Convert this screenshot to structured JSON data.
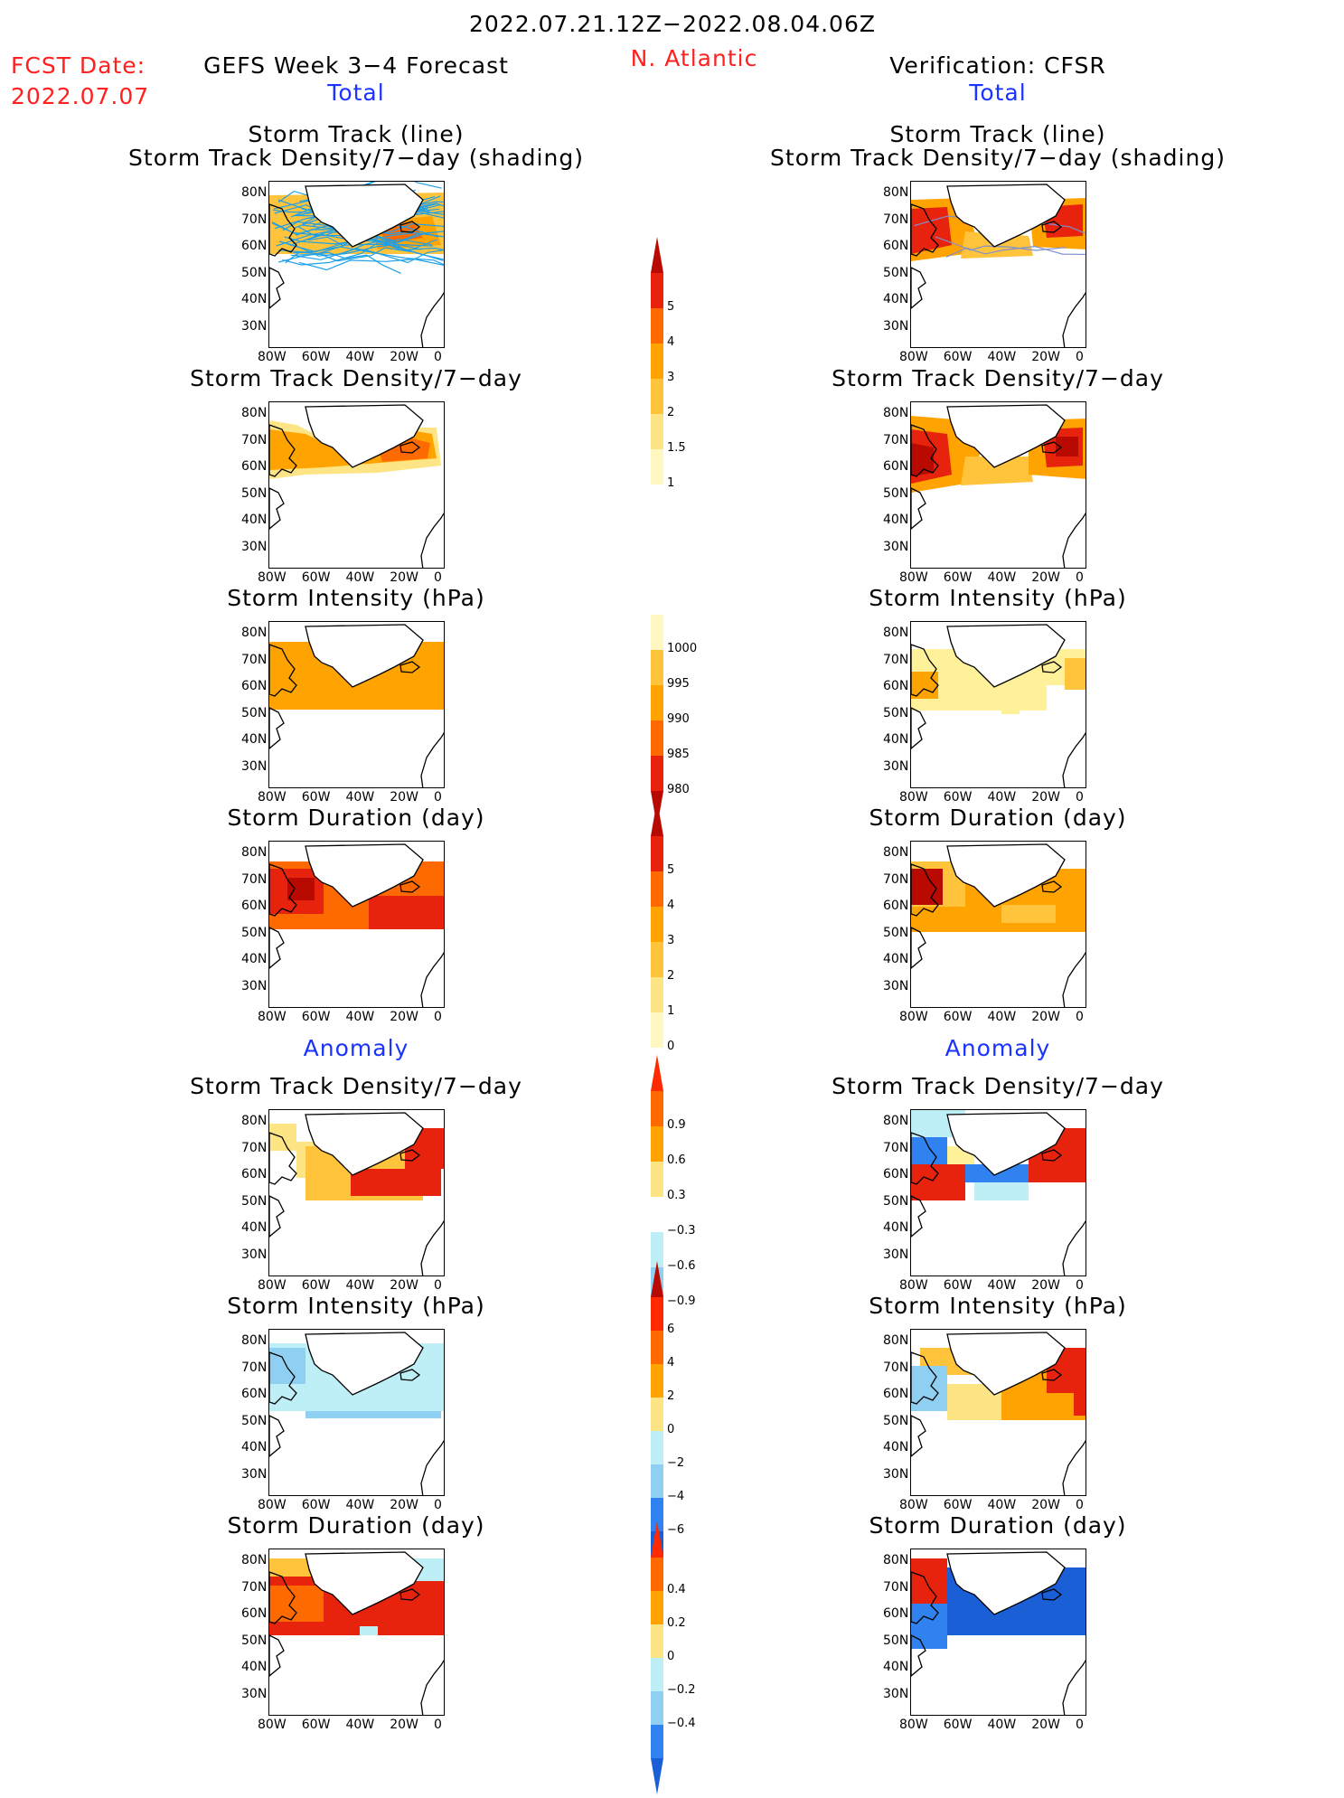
{
  "header": {
    "date_range": "2022.07.21.12Z−2022.08.04.06Z",
    "fcst_label": "FCST Date:",
    "fcst_date": "2022.07.07",
    "model_title": "GEFS Week 3−4 Forecast",
    "region": "N. Atlantic",
    "verification_title": "Verification: CFSR",
    "total_left": "Total",
    "total_right": "Total",
    "anomaly_left": "Anomaly",
    "anomaly_right": "Anomaly"
  },
  "panel_titles": {
    "track_line": "Storm Track (line)",
    "track_shading": "Storm Track Density/7−day (shading)",
    "density": "Storm Track Density/7−day",
    "intensity": "Storm Intensity (hPa)",
    "duration": "Storm Duration (day)"
  },
  "axes": {
    "lat_ticks": [
      "80N",
      "70N",
      "60N",
      "50N",
      "40N",
      "30N"
    ],
    "lon_ticks": [
      "80W",
      "60W",
      "40W",
      "20W",
      "0"
    ]
  },
  "colorbars": {
    "density_total": [
      "5",
      "4",
      "3",
      "2",
      "1.5",
      "1"
    ],
    "intensity_total": [
      "1000",
      "995",
      "990",
      "985",
      "980"
    ],
    "duration_total": [
      "5",
      "4",
      "3",
      "2",
      "1",
      "0"
    ],
    "density_anom": [
      "0.9",
      "0.6",
      "0.3",
      "−0.3",
      "−0.6",
      "−0.9"
    ],
    "intensity_anom": [
      "6",
      "4",
      "2",
      "0",
      "−2",
      "−4",
      "−6"
    ],
    "duration_anom": [
      "0.4",
      "0.2",
      "0",
      "−0.2",
      "−0.4"
    ]
  },
  "colors": {
    "red_text": "#ff2020",
    "blue_text": "#1a33ff",
    "track_line": "#1ea0e8"
  }
}
